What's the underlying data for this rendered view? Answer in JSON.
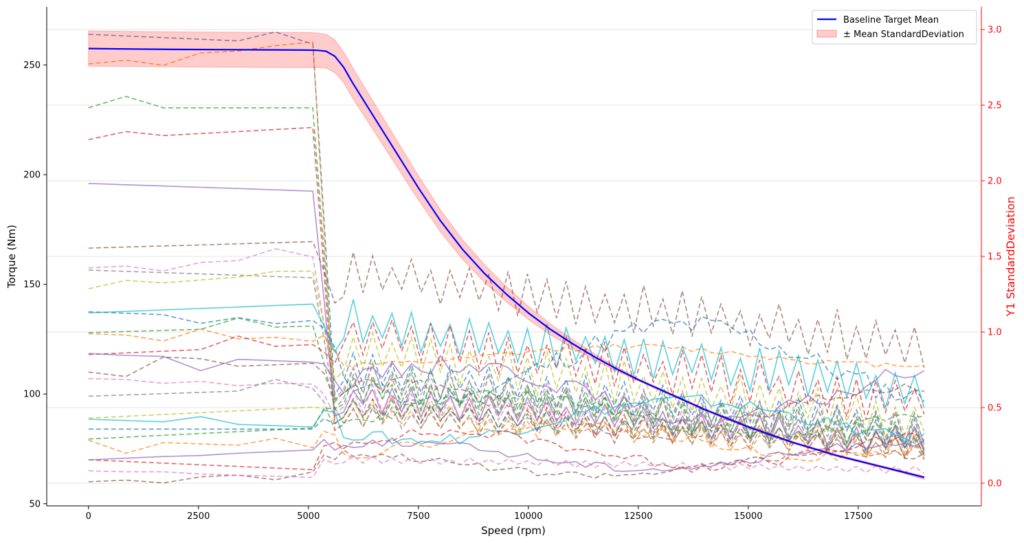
{
  "chart_data": {
    "type": "line",
    "xlabel": "Speed (rpm)",
    "ylabel": "Torque (Nm)",
    "y2label": "Y1 StandardDeviation",
    "xlim": [
      -950,
      20300
    ],
    "ylim": [
      49,
      276.5
    ],
    "y2lim": [
      -0.15,
      3.15
    ],
    "x_ticks": [
      0,
      2500,
      5000,
      7500,
      10000,
      12500,
      15000,
      17500
    ],
    "x_tick_labels": [
      "0",
      "2500",
      "5000",
      "7500",
      "10000",
      "12500",
      "15000",
      "17500"
    ],
    "y_ticks": [
      50,
      100,
      150,
      200,
      250
    ],
    "y_tick_labels": [
      "50",
      "100",
      "150",
      "200",
      "250"
    ],
    "y2_ticks": [
      0.0,
      0.5,
      1.0,
      1.5,
      2.0,
      2.5,
      3.0
    ],
    "y2_tick_labels": [
      "0.0",
      "0.5",
      "1.0",
      "1.5",
      "2.0",
      "2.5",
      "3.0"
    ],
    "grid": "horizontal (right axis)",
    "legend_position": "top-right",
    "colors": {
      "mean": "#0000ff",
      "band": "#ff0000",
      "right_axis": "#ff0000",
      "palette": [
        "#1f77b4",
        "#ff7f0e",
        "#2ca02c",
        "#d62728",
        "#9467bd",
        "#8c564b",
        "#e377c2",
        "#7f7f7f",
        "#bcbd22",
        "#17becf"
      ]
    },
    "series": [
      {
        "name": "Baseline Target Mean",
        "style": "solid",
        "x": [
          0,
          1000,
          2000,
          3000,
          4000,
          5000,
          5200,
          5400,
          5600,
          5800,
          6000,
          6500,
          7000,
          7500,
          8000,
          8500,
          9000,
          9500,
          10000,
          10500,
          11000,
          11500,
          12000,
          12500,
          13000,
          13500,
          14000,
          14500,
          15000,
          15500,
          16000,
          16500,
          17000,
          17500,
          18000,
          18500,
          19000
        ],
        "values": [
          257.5,
          257.3,
          257.1,
          257.0,
          256.9,
          256.8,
          256.7,
          256.3,
          254.0,
          249.0,
          242.0,
          226.0,
          210.0,
          194.0,
          179.0,
          166.0,
          155.0,
          145.5,
          137.0,
          129.5,
          123.0,
          117.0,
          111.5,
          106.5,
          102.0,
          97.5,
          93.0,
          89.0,
          85.0,
          81.5,
          78.0,
          75.0,
          72.0,
          69.5,
          67.0,
          64.5,
          62.0
        ]
      },
      {
        "name": "± Mean StandardDeviation",
        "style": "band",
        "x": [
          0,
          1000,
          2000,
          3000,
          4000,
          5000,
          5200,
          5400,
          5600,
          5800,
          6000,
          6500,
          7000,
          7500,
          8000,
          8500,
          9000,
          9500,
          10000,
          10500,
          11000,
          11500,
          12000,
          12500,
          13000,
          13500,
          14000,
          14500,
          15000,
          15500,
          16000,
          16500,
          17000,
          17500,
          18000,
          18500,
          19000
        ],
        "upper": [
          265.5,
          265.3,
          265.1,
          265.0,
          264.9,
          264.8,
          264.6,
          264.0,
          261.5,
          256.0,
          249.0,
          232.5,
          216.0,
          199.5,
          184.0,
          170.5,
          159.0,
          149.0,
          140.0,
          132.0,
          125.0,
          118.5,
          112.5,
          107.0,
          102.5,
          98.0,
          93.5,
          89.5,
          85.5,
          82.0,
          78.5,
          75.5,
          72.5,
          70.0,
          67.5,
          65.0,
          62.5
        ],
        "lower": [
          249.5,
          249.3,
          249.1,
          249.0,
          248.9,
          248.8,
          248.8,
          248.6,
          246.5,
          242.0,
          235.0,
          219.5,
          204.0,
          188.5,
          174.0,
          161.5,
          151.0,
          142.0,
          134.0,
          127.0,
          121.0,
          115.5,
          110.5,
          106.0,
          101.5,
          97.0,
          92.5,
          88.5,
          84.5,
          81.0,
          77.5,
          74.5,
          71.5,
          69.0,
          66.5,
          64.0,
          61.0
        ]
      }
    ],
    "sample_curves": [
      {
        "start": 264,
        "end": 259.5,
        "curve": "descend",
        "low": 62,
        "high": 120
      },
      {
        "start": 250.5,
        "end": 260.5,
        "curve": "descend",
        "low": 62,
        "high": 95
      },
      {
        "start": 230.5,
        "end": 230.5,
        "curve": "descend",
        "low": 62,
        "high": 115
      },
      {
        "start": 216,
        "end": 221.5,
        "curve": "descend",
        "low": 62,
        "high": 100
      },
      {
        "start": 196,
        "end": 192.5,
        "curve": "descend",
        "low": 62,
        "high": 105
      },
      {
        "start": 166.5,
        "end": 169.5,
        "curve": "descend",
        "low": 96,
        "high": 166
      },
      {
        "start": 157.5,
        "end": 162.5,
        "curve": "descend",
        "low": 65,
        "high": 115
      },
      {
        "start": 156.5,
        "end": 153,
        "curve": "descend",
        "low": 62,
        "high": 110
      },
      {
        "start": 148,
        "end": 156,
        "curve": "descend",
        "low": 63,
        "high": 130
      },
      {
        "start": 137,
        "end": 141,
        "curve": "descend",
        "low": 76,
        "high": 143
      },
      {
        "start": 137.5,
        "end": 133.5,
        "curve": "wave",
        "low": 92,
        "high": 137
      },
      {
        "start": 127.5,
        "end": 124,
        "curve": "wave",
        "low": 112,
        "high": 123
      },
      {
        "start": 128,
        "end": 131,
        "curve": "descend",
        "low": 62,
        "high": 110
      },
      {
        "start": 118,
        "end": 122.5,
        "curve": "descend",
        "low": 70,
        "high": 138
      },
      {
        "start": 118.5,
        "end": 114.5,
        "curve": "wave",
        "low": 84,
        "high": 118
      },
      {
        "start": 110,
        "end": 114,
        "curve": "wave",
        "low": 78,
        "high": 108
      },
      {
        "start": 107,
        "end": 104.5,
        "curve": "descend",
        "low": 62,
        "high": 105
      },
      {
        "start": 99,
        "end": 102.5,
        "curve": "descend",
        "low": 62,
        "high": 95
      },
      {
        "start": 89,
        "end": 94,
        "curve": "descend",
        "low": 62,
        "high": 100
      },
      {
        "start": 88.5,
        "end": 85,
        "curve": "wave",
        "low": 76,
        "high": 100
      },
      {
        "start": 84,
        "end": 84,
        "curve": "descend",
        "low": 65,
        "high": 98
      },
      {
        "start": 79,
        "end": 75.5,
        "curve": "wave",
        "low": 69,
        "high": 88
      },
      {
        "start": 79.5,
        "end": 84.5,
        "curve": "wave",
        "low": 78,
        "high": 102
      },
      {
        "start": 70,
        "end": 65.5,
        "curve": "wave",
        "low": 65,
        "high": 85
      },
      {
        "start": 70,
        "end": 74.5,
        "curve": "wave",
        "low": 64,
        "high": 80
      },
      {
        "start": 60,
        "end": 64.5,
        "curve": "wave",
        "low": 61,
        "high": 75
      },
      {
        "start": 65,
        "end": 62,
        "curve": "descend",
        "low": 61,
        "high": 72
      }
    ]
  }
}
